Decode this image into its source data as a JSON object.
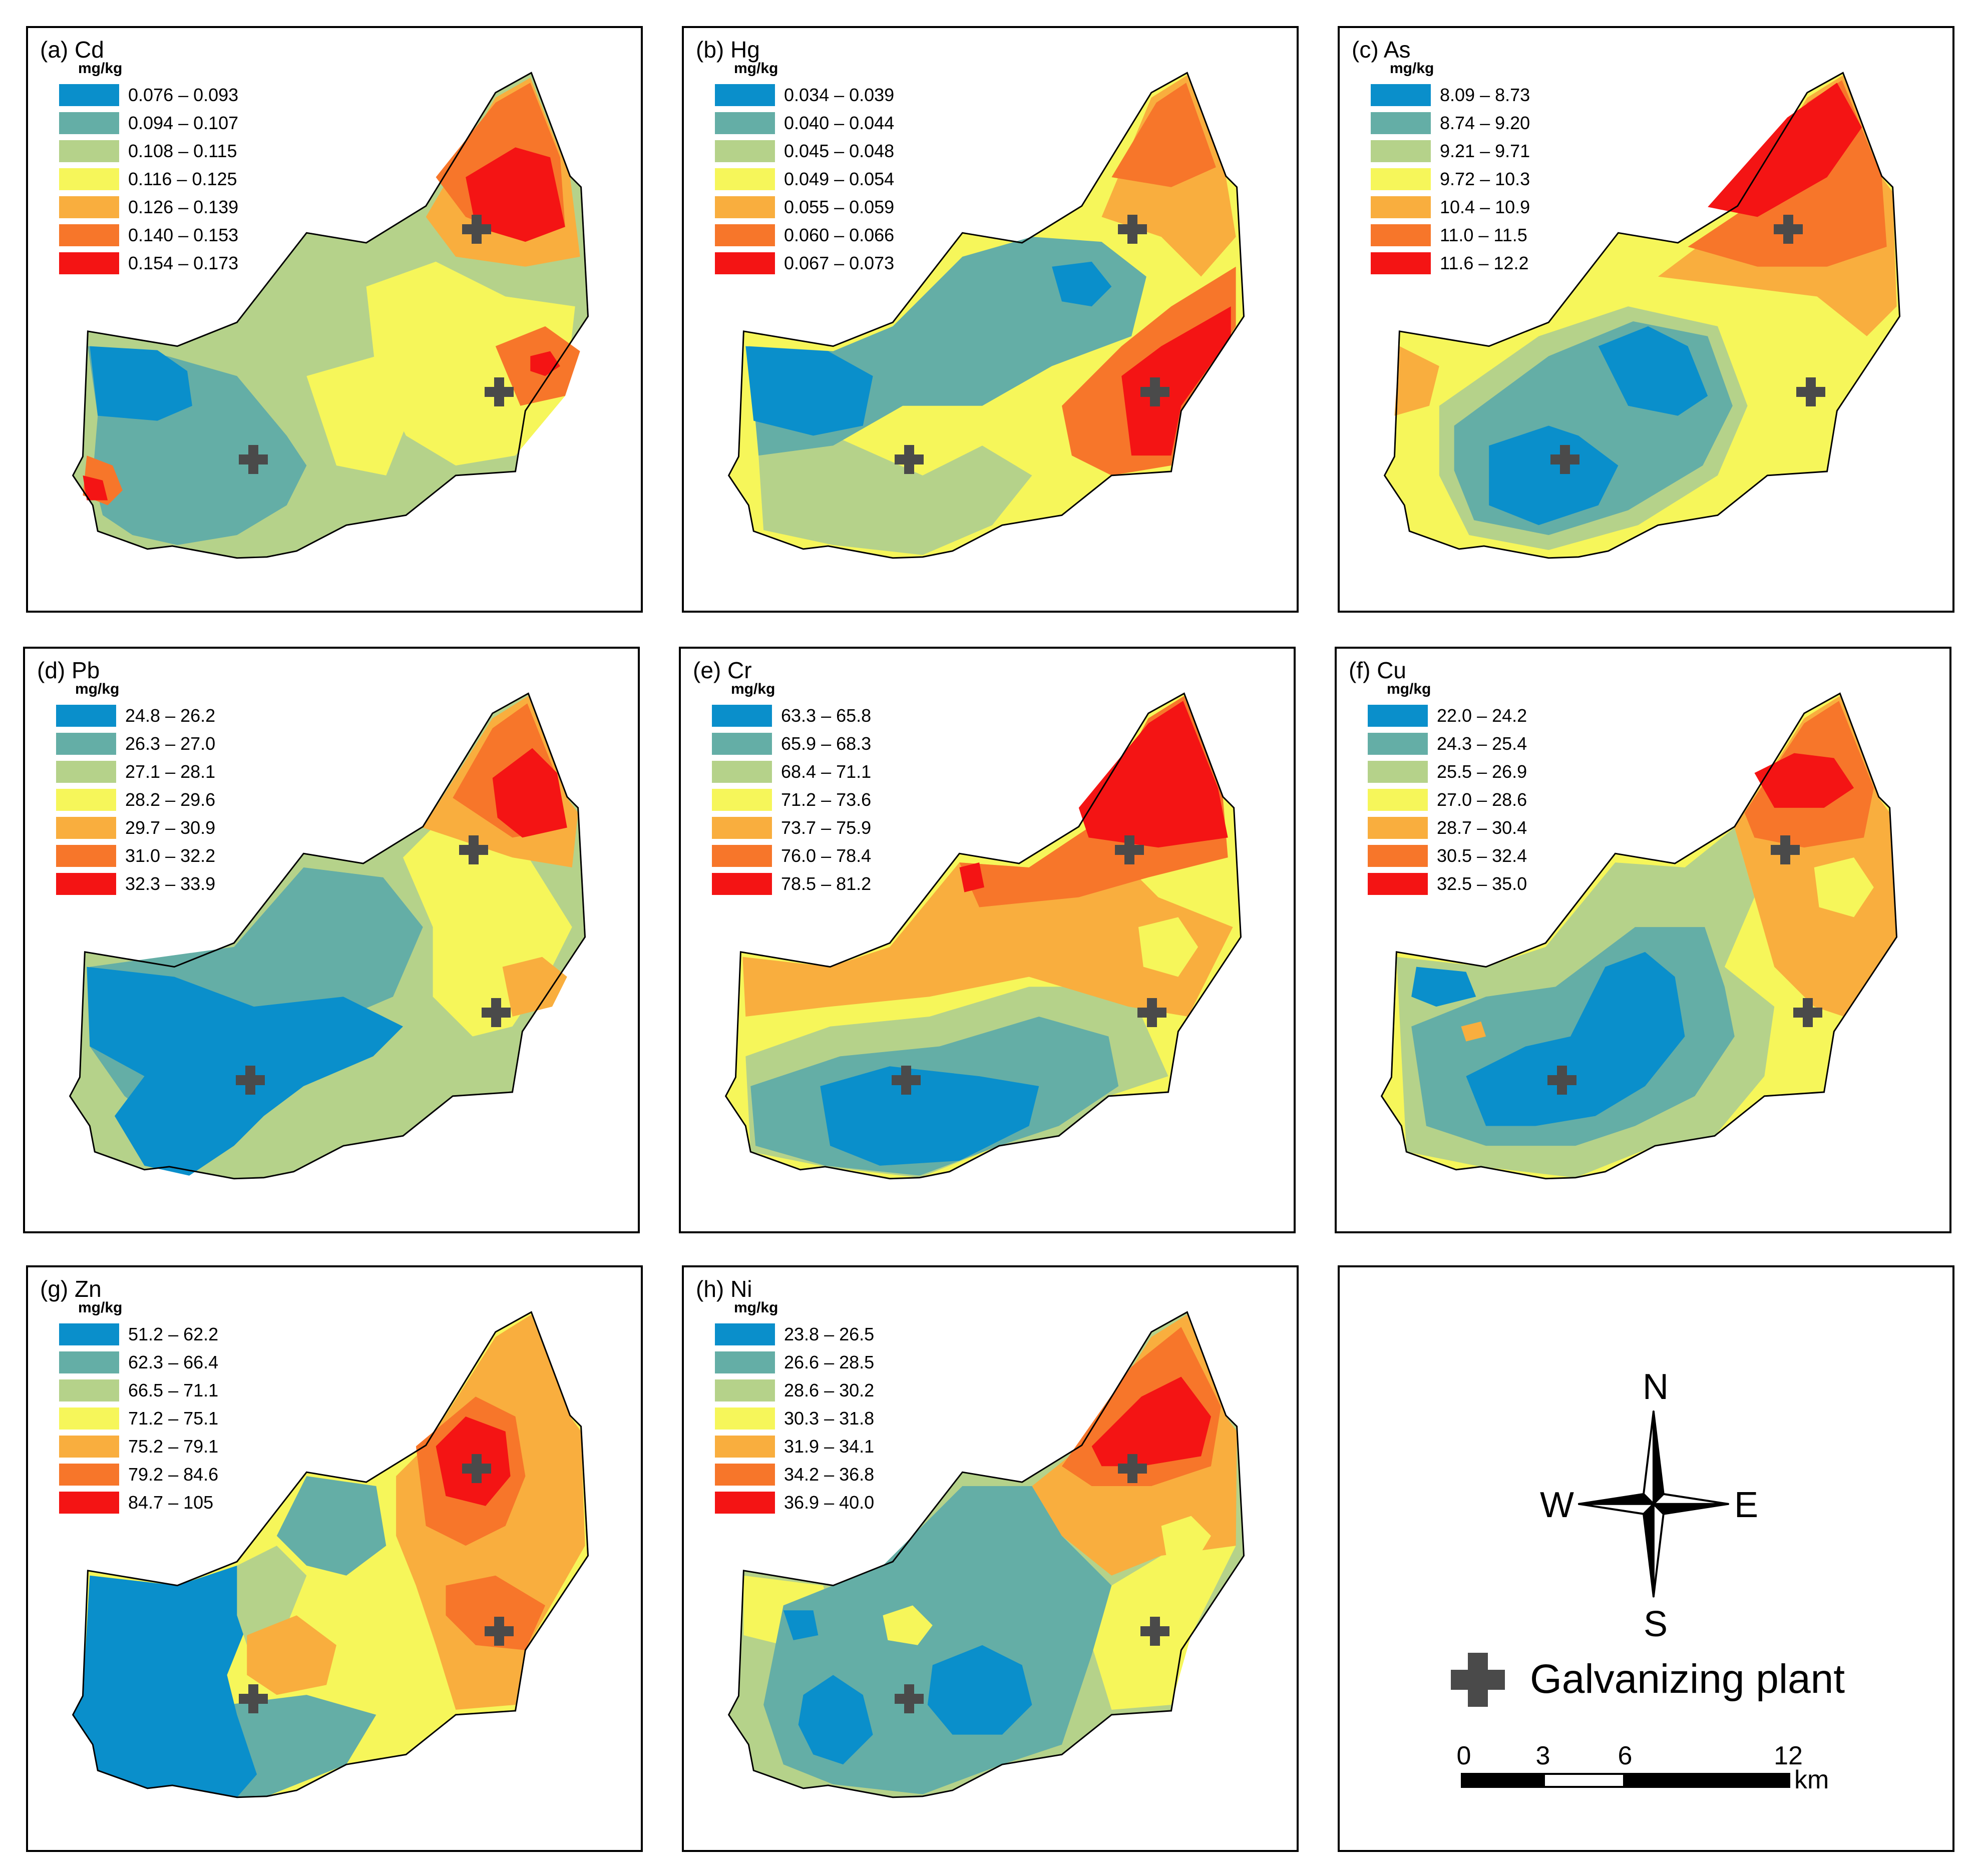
{
  "unit": "mg/kg",
  "map_key": {
    "compass": {
      "north": "N",
      "south": "S",
      "east": "E",
      "west": "W"
    },
    "plant_label": "Galvanizing plant",
    "scale": {
      "ticks": [
        "0",
        "3",
        "6",
        "12"
      ],
      "unit": "km"
    }
  },
  "panels": [
    {
      "title": "(a) Cd",
      "element": "Cd",
      "legend": [
        "0.076 – 0.093",
        "0.094 – 0.107",
        "0.108 – 0.115",
        "0.116 – 0.125",
        "0.126 – 0.139",
        "0.140 – 0.153",
        "0.154 – 0.173"
      ]
    },
    {
      "title": "(b) Hg",
      "element": "Hg",
      "legend": [
        "0.034 – 0.039",
        "0.040 – 0.044",
        "0.045 – 0.048",
        "0.049 – 0.054",
        "0.055 – 0.059",
        "0.060 – 0.066",
        "0.067 – 0.073"
      ]
    },
    {
      "title": "(c) As",
      "element": "As",
      "legend": [
        "8.09 – 8.73",
        "8.74 – 9.20",
        "9.21 – 9.71",
        "9.72 – 10.3",
        "10.4 – 10.9",
        "11.0 – 11.5",
        "11.6 – 12.2"
      ]
    },
    {
      "title": "(d) Pb",
      "element": "Pb",
      "legend": [
        "24.8 – 26.2",
        "26.3 – 27.0",
        "27.1 – 28.1",
        "28.2 – 29.6",
        "29.7 – 30.9",
        "31.0 – 32.2",
        "32.3 – 33.9"
      ]
    },
    {
      "title": "(e) Cr",
      "element": "Cr",
      "legend": [
        "63.3 – 65.8",
        "65.9 – 68.3",
        "68.4 – 71.1",
        "71.2 – 73.6",
        "73.7 – 75.9",
        "76.0 – 78.4",
        "78.5 – 81.2"
      ]
    },
    {
      "title": "(f) Cu",
      "element": "Cu",
      "legend": [
        "22.0 – 24.2",
        "24.3 – 25.4",
        "25.5 – 26.9",
        "27.0 – 28.6",
        "28.7 – 30.4",
        "30.5 – 32.4",
        "32.5 – 35.0"
      ]
    },
    {
      "title": "(g) Zn",
      "element": "Zn",
      "legend": [
        "51.2 – 62.2",
        "62.3 – 66.4",
        "66.5 – 71.1",
        "71.2 – 75.1",
        "75.2 – 79.1",
        "79.2 – 84.6",
        "84.7 – 105"
      ]
    },
    {
      "title": "(h) Ni",
      "element": "Ni",
      "legend": [
        "23.8 – 26.5",
        "26.6 – 28.5",
        "28.6 – 30.2",
        "30.3 – 31.8",
        "31.9 – 34.1",
        "34.2 – 36.8",
        "36.9 – 40.0"
      ]
    }
  ],
  "colors": {
    "classes": [
      "#0a8fcb",
      "#64aea6",
      "#b5d28a",
      "#f6f65a",
      "#f9ae3e",
      "#f7762a",
      "#f41414"
    ],
    "boundary": "#000000",
    "plant": "#4a4a4a"
  }
}
